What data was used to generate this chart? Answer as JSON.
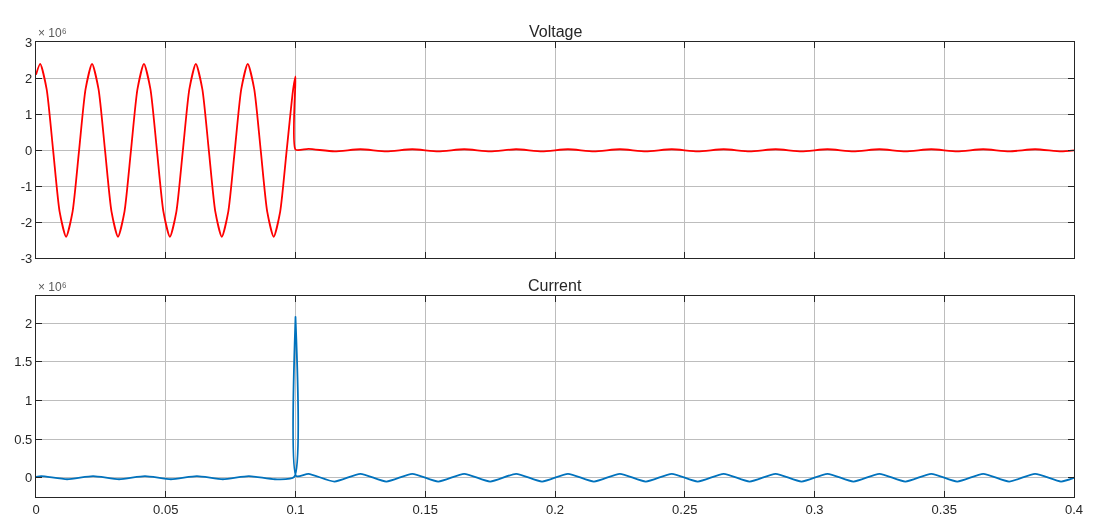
{
  "chart_data": [
    {
      "type": "line",
      "title": "Voltage",
      "annotations": [
        "× 10⁶"
      ],
      "color": "#ff0000",
      "grid": true,
      "tick_labels": "y",
      "x": [
        0,
        0.0016,
        0.0041,
        0.0066,
        0.0091,
        0.0116,
        0.0141,
        0.0166,
        0.0191,
        0.0216,
        0.0241,
        0.0266,
        0.0291,
        0.0316,
        0.0341,
        0.0366,
        0.0391,
        0.0416,
        0.0441,
        0.0466,
        0.0491,
        0.0516,
        0.0541,
        0.0566,
        0.0591,
        0.0616,
        0.0641,
        0.0666,
        0.0691,
        0.0716,
        0.0741,
        0.0766,
        0.0791,
        0.0816,
        0.0841,
        0.0866,
        0.0891,
        0.0916,
        0.0941,
        0.0966,
        0.0991,
        0.1,
        0.1,
        0.105,
        0.115,
        0.125,
        0.135,
        0.145,
        0.155,
        0.165,
        0.175,
        0.185,
        0.195,
        0.205,
        0.215,
        0.225,
        0.235,
        0.245,
        0.255,
        0.265,
        0.275,
        0.285,
        0.295,
        0.305,
        0.315,
        0.325,
        0.335,
        0.345,
        0.355,
        0.365,
        0.375,
        0.385,
        0.395,
        0.4
      ],
      "values": [
        2.1,
        2.4,
        1.7,
        0,
        -1.7,
        -2.4,
        -1.7,
        0,
        1.7,
        2.4,
        1.7,
        0,
        -1.7,
        -2.4,
        -1.7,
        0,
        1.7,
        2.4,
        1.7,
        0,
        -1.7,
        -2.4,
        -1.7,
        0,
        1.7,
        2.4,
        1.7,
        0,
        -1.7,
        -2.4,
        -1.7,
        0,
        1.7,
        2.4,
        1.7,
        0,
        -1.7,
        -2.4,
        -1.7,
        0,
        1.7,
        2.05,
        0.02,
        0.04,
        -0.03,
        0.03,
        -0.03,
        0.03,
        -0.03,
        0.03,
        -0.03,
        0.03,
        -0.03,
        0.03,
        -0.03,
        0.03,
        -0.03,
        0.03,
        -0.03,
        0.03,
        -0.03,
        0.03,
        -0.03,
        0.03,
        -0.03,
        0.03,
        -0.03,
        0.03,
        -0.03,
        0.03,
        -0.03,
        0.03,
        -0.03,
        0
      ],
      "xlim": [
        0,
        0.4
      ],
      "xticks": [
        0,
        0.05,
        0.1,
        0.15,
        0.2,
        0.25,
        0.3,
        0.35,
        0.4
      ],
      "ylim": [
        -3,
        3
      ],
      "yticks": [
        -3,
        -2,
        -1,
        0,
        1,
        2,
        3
      ]
    },
    {
      "type": "line",
      "title": "Current",
      "annotations": [
        "× 10⁶"
      ],
      "color": "#0072bd",
      "grid": true,
      "x": [
        0,
        0.002,
        0.012,
        0.022,
        0.032,
        0.042,
        0.052,
        0.062,
        0.072,
        0.082,
        0.092,
        0.0995,
        0.1,
        0.1003,
        0.105,
        0.115,
        0.125,
        0.135,
        0.145,
        0.155,
        0.165,
        0.175,
        0.185,
        0.195,
        0.205,
        0.215,
        0.225,
        0.235,
        0.245,
        0.255,
        0.265,
        0.275,
        0.285,
        0.295,
        0.305,
        0.315,
        0.325,
        0.335,
        0.345,
        0.355,
        0.365,
        0.375,
        0.385,
        0.395,
        0.4
      ],
      "values": [
        0.01,
        0.02,
        -0.02,
        0.02,
        -0.02,
        0.02,
        -0.02,
        0.02,
        -0.02,
        0.02,
        -0.02,
        0.01,
        2.08,
        0.02,
        0.05,
        -0.05,
        0.05,
        -0.05,
        0.05,
        -0.05,
        0.05,
        -0.05,
        0.05,
        -0.05,
        0.05,
        -0.05,
        0.05,
        -0.05,
        0.05,
        -0.05,
        0.05,
        -0.05,
        0.05,
        -0.05,
        0.05,
        -0.05,
        0.05,
        -0.05,
        0.05,
        -0.05,
        0.05,
        -0.05,
        0.05,
        -0.05,
        0
      ],
      "xlim": [
        0,
        0.4
      ],
      "xticks": [
        0,
        0.05,
        0.1,
        0.15,
        0.2,
        0.25,
        0.3,
        0.35,
        0.4
      ],
      "ylim": [
        -0.25,
        2.35
      ],
      "yticks": [
        0,
        0.5,
        1,
        1.5,
        2
      ]
    }
  ]
}
